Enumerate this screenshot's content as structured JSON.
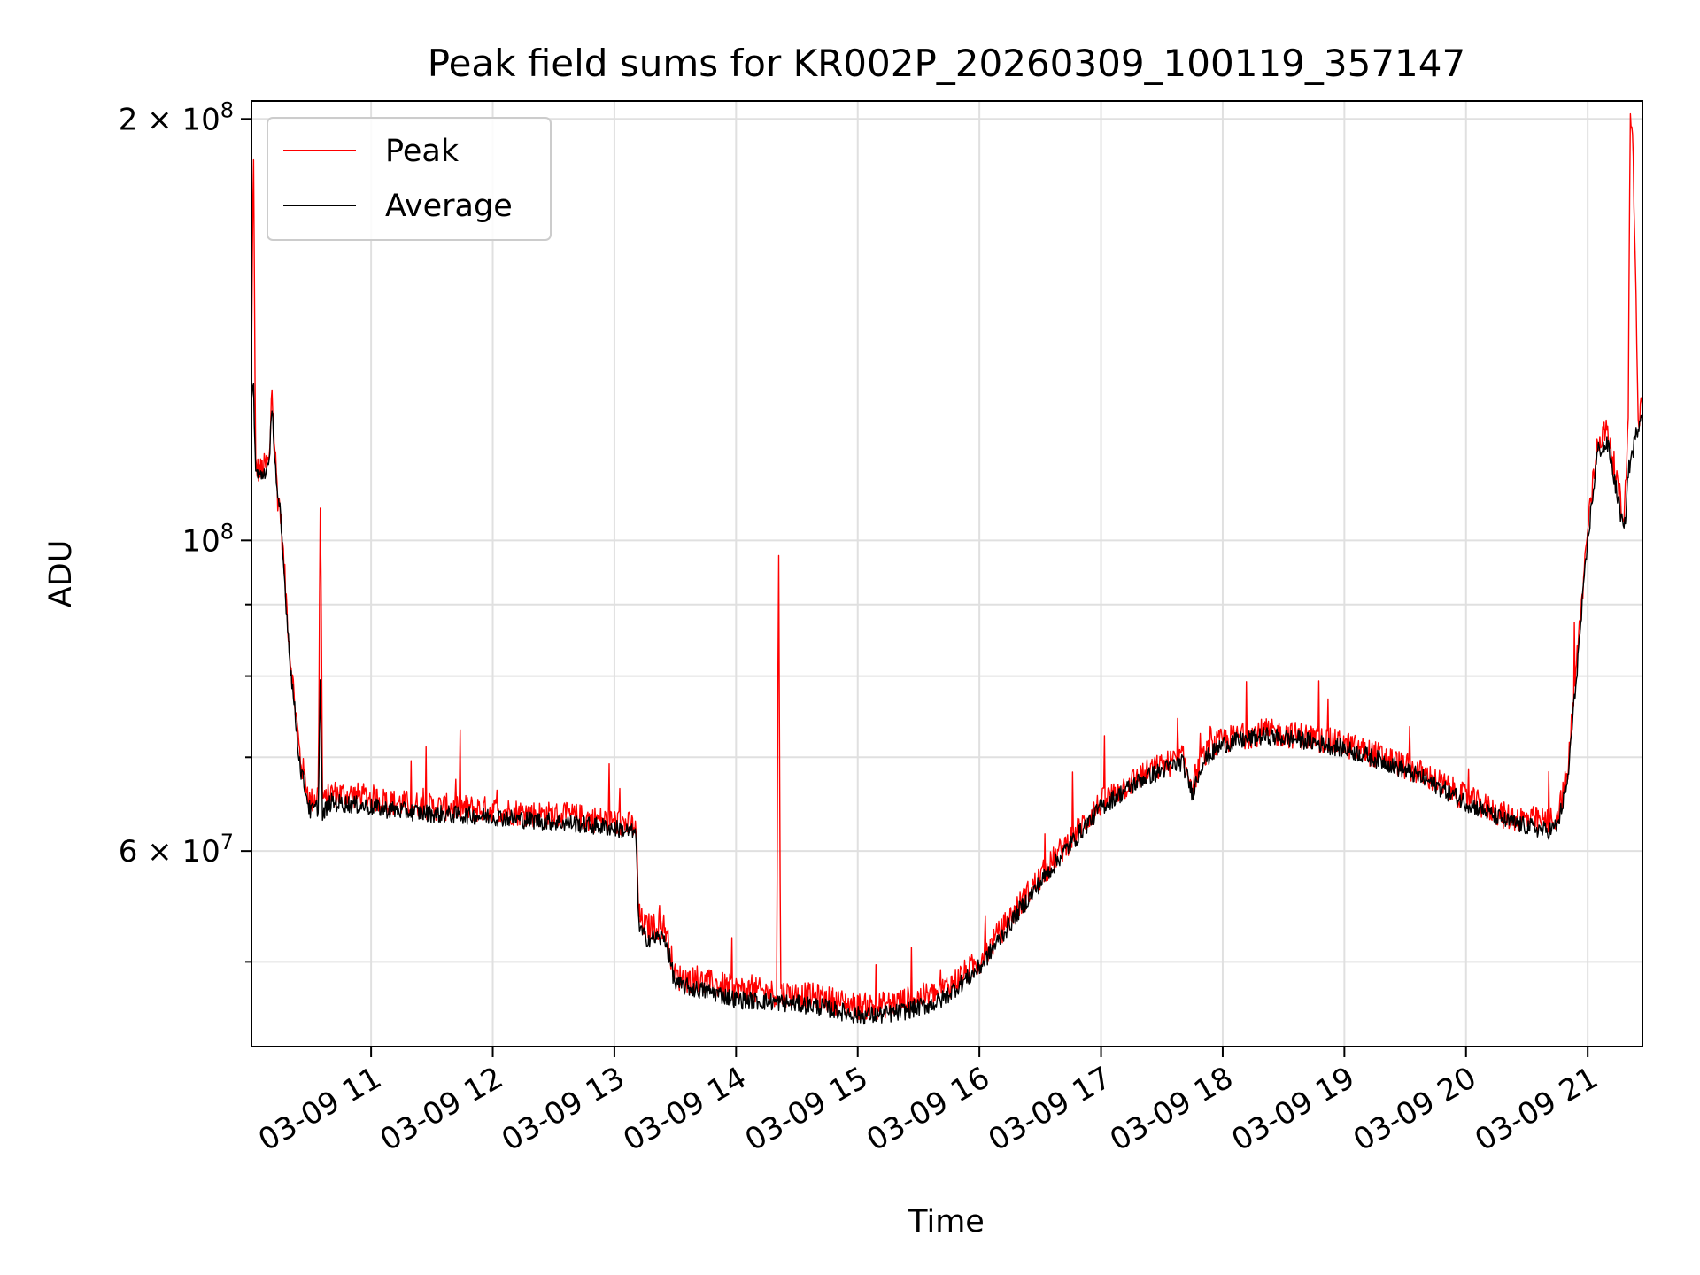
{
  "chart_data": {
    "type": "line",
    "title": "Peak field sums for KR002P_20260309_100119_357147",
    "xlabel": "Time",
    "ylabel": "ADU",
    "yscale": "log",
    "ylim": [
      43500000,
      206000000
    ],
    "xlim": [
      "03-09 10:01",
      "03-09 21:27"
    ],
    "x_ticks": [
      "03-09 11",
      "03-09 12",
      "03-09 13",
      "03-09 14",
      "03-09 15",
      "03-09 16",
      "03-09 17",
      "03-09 18",
      "03-09 19",
      "03-09 20",
      "03-09 21"
    ],
    "y_ticks": [
      {
        "value": 200000000,
        "mantissa": "2",
        "exponent": "8"
      },
      {
        "value": 100000000,
        "mantissa": "",
        "exponent": "8"
      },
      {
        "value": 60000000,
        "mantissa": "6",
        "exponent": "7"
      }
    ],
    "y_minor_ticks": [
      50000000,
      70000000,
      80000000,
      90000000
    ],
    "grid": true,
    "legend": {
      "placement": "upper-left"
    },
    "colors": {
      "peak": "#ff0000",
      "average": "#000000",
      "grid": "#e0e0e0"
    },
    "series": [
      {
        "name": "Peak",
        "color": "#ff0000",
        "x": [
          "03-09 10:01",
          "03-09 10:02",
          "03-09 10:03",
          "03-09 10:05",
          "03-09 10:10",
          "03-09 10:11",
          "03-09 10:12",
          "03-09 10:14",
          "03-09 10:15",
          "03-09 10:20",
          "03-09 10:25",
          "03-09 10:30",
          "03-09 10:34",
          "03-09 10:35",
          "03-09 10:36",
          "03-09 10:37",
          "03-09 10:40",
          "03-09 10:50",
          "03-09 11:00",
          "03-09 11:10",
          "03-09 11:20",
          "03-09 11:30",
          "03-09 11:40",
          "03-09 12:00",
          "03-09 12:10",
          "03-09 12:20",
          "03-09 12:40",
          "03-09 13:00",
          "03-09 13:10",
          "03-09 13:11",
          "03-09 13:12",
          "03-09 13:15",
          "03-09 13:25",
          "03-09 13:30",
          "03-09 13:40",
          "03-09 13:50",
          "03-09 14:00",
          "03-09 14:20",
          "03-09 14:21",
          "03-09 14:22",
          "03-09 14:40",
          "03-09 15:00",
          "03-09 15:10",
          "03-09 15:20",
          "03-09 15:40",
          "03-09 16:00",
          "03-09 16:20",
          "03-09 16:40",
          "03-09 17:00",
          "03-09 17:20",
          "03-09 17:40",
          "03-09 17:45",
          "03-09 17:50",
          "03-09 18:00",
          "03-09 18:20",
          "03-09 18:40",
          "03-09 19:00",
          "03-09 19:20",
          "03-09 19:40",
          "03-09 20:00",
          "03-09 20:20",
          "03-09 20:40",
          "03-09 20:45",
          "03-09 20:50",
          "03-09 21:00",
          "03-09 21:05",
          "03-09 21:10",
          "03-09 21:15",
          "03-09 21:18",
          "03-09 21:20",
          "03-09 21:21",
          "03-09 21:22",
          "03-09 21:25",
          "03-09 21:27"
        ],
        "y": [
          132000000,
          195000000,
          113000000,
          112000000,
          114000000,
          130000000,
          120000000,
          107000000,
          106000000,
          83000000,
          70000000,
          65000000,
          66000000,
          110000000,
          66000000,
          65000000,
          66000000,
          65800000,
          65500000,
          65000000,
          64800000,
          64500000,
          64500000,
          64200000,
          64000000,
          63800000,
          63500000,
          63000000,
          62500000,
          61000000,
          54000000,
          53000000,
          53000000,
          48800000,
          48500000,
          48200000,
          47800000,
          47500000,
          101000000,
          47500000,
          47200000,
          46500000,
          46500000,
          46800000,
          47500000,
          50000000,
          55000000,
          60000000,
          65000000,
          68000000,
          70000000,
          67000000,
          70000000,
          72000000,
          73000000,
          72500000,
          71500000,
          70000000,
          68000000,
          65500000,
          63500000,
          63000000,
          63500000,
          68000000,
          102000000,
          118000000,
          120000000,
          109000000,
          103000000,
          125000000,
          202000000,
          200000000,
          122000000,
          125000000
        ]
      },
      {
        "name": "Average",
        "color": "#000000",
        "x": [
          "03-09 10:01",
          "03-09 10:02",
          "03-09 10:03",
          "03-09 10:05",
          "03-09 10:10",
          "03-09 10:11",
          "03-09 10:12",
          "03-09 10:14",
          "03-09 10:15",
          "03-09 10:20",
          "03-09 10:25",
          "03-09 10:30",
          "03-09 10:34",
          "03-09 10:35",
          "03-09 10:36",
          "03-09 10:37",
          "03-09 10:40",
          "03-09 10:50",
          "03-09 11:00",
          "03-09 11:10",
          "03-09 11:20",
          "03-09 11:30",
          "03-09 11:40",
          "03-09 12:00",
          "03-09 12:10",
          "03-09 12:20",
          "03-09 12:40",
          "03-09 13:00",
          "03-09 13:10",
          "03-09 13:11",
          "03-09 13:12",
          "03-09 13:15",
          "03-09 13:25",
          "03-09 13:30",
          "03-09 13:40",
          "03-09 13:50",
          "03-09 14:00",
          "03-09 14:20",
          "03-09 14:40",
          "03-09 15:00",
          "03-09 15:10",
          "03-09 15:20",
          "03-09 15:40",
          "03-09 16:00",
          "03-09 16:20",
          "03-09 16:40",
          "03-09 17:00",
          "03-09 17:20",
          "03-09 17:40",
          "03-09 17:45",
          "03-09 17:50",
          "03-09 18:00",
          "03-09 18:20",
          "03-09 18:40",
          "03-09 19:00",
          "03-09 19:20",
          "03-09 19:40",
          "03-09 20:00",
          "03-09 20:20",
          "03-09 20:40",
          "03-09 20:45",
          "03-09 20:50",
          "03-09 21:00",
          "03-09 21:05",
          "03-09 21:10",
          "03-09 21:15",
          "03-09 21:18",
          "03-09 21:20",
          "03-09 21:25",
          "03-09 21:27"
        ],
        "y": [
          125000000,
          130000000,
          112000000,
          111000000,
          113000000,
          127000000,
          118000000,
          106000000,
          105000000,
          82000000,
          69000000,
          64000000,
          64500000,
          80000000,
          63000000,
          64000000,
          65000000,
          64800000,
          64500000,
          64200000,
          64000000,
          63800000,
          63700000,
          63500000,
          63300000,
          63100000,
          62800000,
          62300000,
          61800000,
          60500000,
          53000000,
          52000000,
          52000000,
          48200000,
          47800000,
          47500000,
          47000000,
          46800000,
          46500000,
          45800000,
          45800000,
          46000000,
          46800000,
          49500000,
          54500000,
          59500000,
          64500000,
          67500000,
          69500000,
          66000000,
          69500000,
          71500000,
          72500000,
          72000000,
          71000000,
          69500000,
          67500000,
          65000000,
          63000000,
          62000000,
          62500000,
          67000000,
          100000000,
          116000000,
          117000000,
          107000000,
          101000000,
          112000000,
          121000000,
          124000000
        ]
      }
    ]
  }
}
